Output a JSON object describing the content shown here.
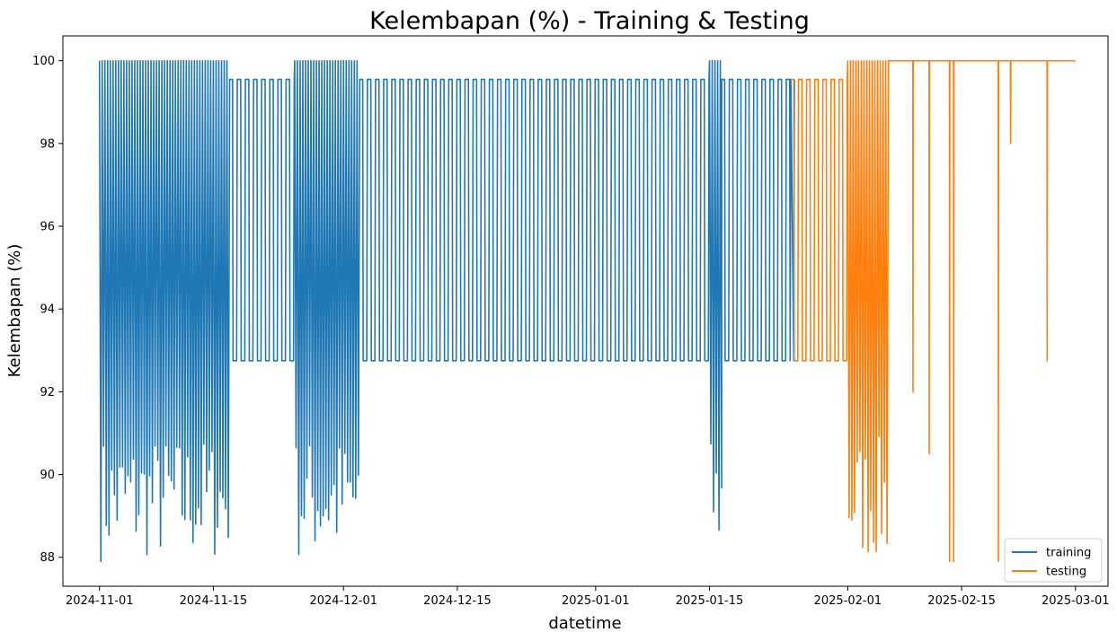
{
  "chart_data": {
    "type": "line",
    "title": "Kelembapan (%) - Training & Testing",
    "xlabel": "datetime",
    "ylabel": "Kelembapan (%)",
    "xlim": [
      "2024-10-27T12:00",
      "2025-03-05T00:00"
    ],
    "ylim": [
      87.3,
      100.6
    ],
    "x_ticks": [
      "2024-11-01",
      "2024-11-15",
      "2024-12-01",
      "2024-12-15",
      "2025-01-01",
      "2025-01-15",
      "2025-02-01",
      "2025-02-15",
      "2025-03-01"
    ],
    "y_ticks": [
      88,
      90,
      92,
      94,
      96,
      98,
      100
    ],
    "grid": false,
    "legend_position": "lower-right",
    "series": [
      {
        "name": "training",
        "color": "#1f77b4",
        "start": "2024-11-01T00:00",
        "end": "2025-01-25T00:00",
        "segments": [
          {
            "from": "2024-11-01T00:00",
            "to": "2024-11-06T00:00",
            "pattern": "dense",
            "min": 87.9,
            "max": 100
          },
          {
            "from": "2024-11-06T00:00",
            "to": "2024-11-17T00:00",
            "pattern": "dense",
            "min": 87.9,
            "max": 100
          },
          {
            "from": "2024-11-17T00:00",
            "to": "2024-11-25T00:00",
            "pattern": "daily",
            "min": 92.75,
            "max": 99.55
          },
          {
            "from": "2024-11-25T00:00",
            "to": "2024-12-03T00:00",
            "pattern": "dense",
            "min": 87.9,
            "max": 100
          },
          {
            "from": "2024-12-03T00:00",
            "to": "2025-01-15T00:00",
            "pattern": "daily",
            "min": 92.75,
            "max": 99.55
          },
          {
            "from": "2025-01-15T00:00",
            "to": "2025-01-16T12:00",
            "pattern": "dense",
            "min": 87.9,
            "max": 100
          },
          {
            "from": "2025-01-16T12:00",
            "to": "2025-01-25T00:00",
            "pattern": "daily",
            "min": 92.75,
            "max": 99.55
          }
        ]
      },
      {
        "name": "testing",
        "color": "#ff7f0e",
        "start": "2025-01-25T00:00",
        "end": "2025-03-01T00:00",
        "segments": [
          {
            "from": "2025-01-25T00:00",
            "to": "2025-02-01T00:00",
            "pattern": "daily",
            "min": 92.75,
            "max": 99.55
          },
          {
            "from": "2025-02-01T00:00",
            "to": "2025-02-06T00:00",
            "pattern": "dense",
            "min": 87.9,
            "max": 100
          },
          {
            "from": "2025-02-06T00:00",
            "to": "2025-03-01T00:00",
            "pattern": "high",
            "min": 92.7,
            "max": 100
          }
        ],
        "dips": [
          {
            "date": "2025-02-09T00:00",
            "value": 92.0
          },
          {
            "date": "2025-02-11T00:00",
            "value": 90.5
          },
          {
            "date": "2025-02-13T12:00",
            "value": 87.9
          },
          {
            "date": "2025-02-14T00:00",
            "value": 87.9
          },
          {
            "date": "2025-02-19T12:00",
            "value": 87.9
          },
          {
            "date": "2025-02-21T00:00",
            "value": 98.0
          },
          {
            "date": "2025-02-25T12:00",
            "value": 92.75
          }
        ]
      }
    ]
  }
}
